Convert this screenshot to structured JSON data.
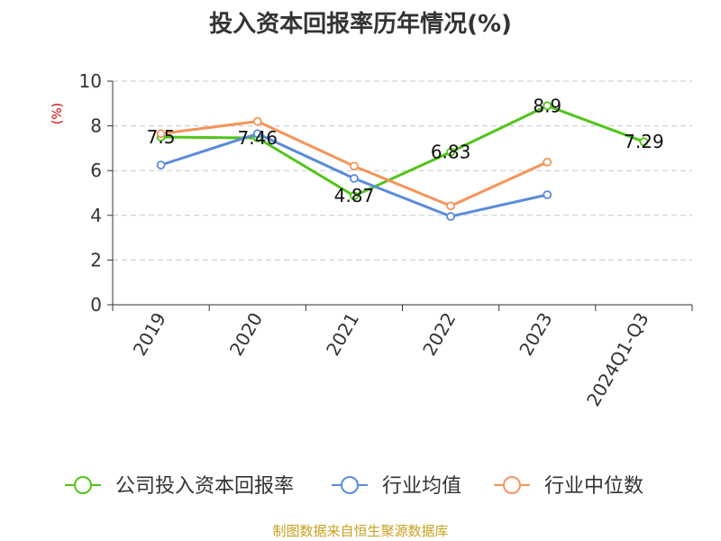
{
  "chart_data": {
    "type": "line",
    "title": "投入资本回报率历年情况(%)",
    "ylabel": "(%)",
    "xlabel": "",
    "categories": [
      "2019",
      "2020",
      "2021",
      "2022",
      "2023",
      "2024Q1-Q3"
    ],
    "ylim": [
      0,
      10
    ],
    "yticks": [
      0,
      2,
      4,
      6,
      8,
      10
    ],
    "grid": true,
    "legend_position": "bottom",
    "series": [
      {
        "name": "公司投入资本回报率",
        "color": "#52c41a",
        "values": [
          7.5,
          7.46,
          4.87,
          6.83,
          8.9,
          7.29
        ],
        "labels": [
          "7.5",
          "7.46",
          "4.87",
          "6.83",
          "8.9",
          "7.29"
        ]
      },
      {
        "name": "行业均值",
        "color": "#5b8bd9",
        "values": [
          6.25,
          7.65,
          5.65,
          3.95,
          4.92,
          null
        ]
      },
      {
        "name": "行业中位数",
        "color": "#f5955a",
        "values": [
          7.65,
          8.2,
          6.2,
          4.42,
          6.38,
          null
        ]
      }
    ]
  },
  "source": "制图数据来自恒生聚源数据库"
}
